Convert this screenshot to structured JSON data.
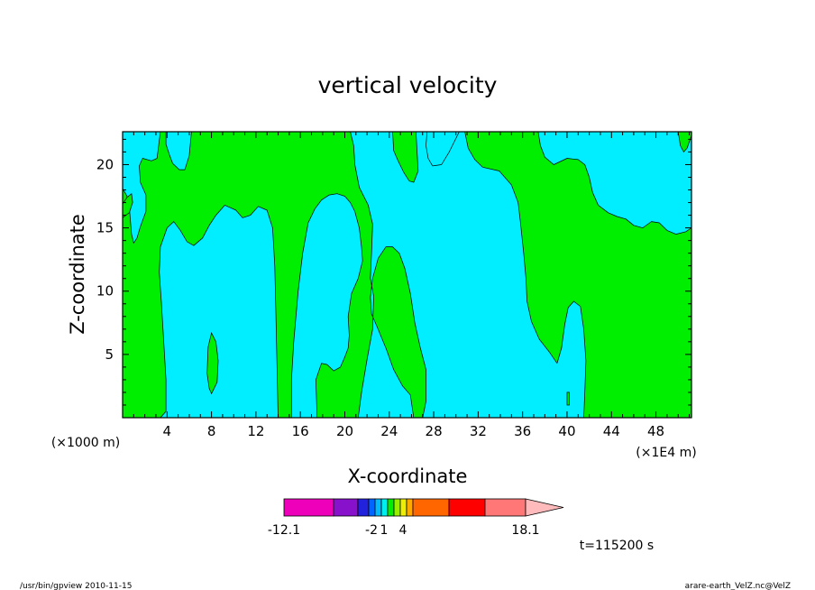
{
  "chart_data": {
    "type": "contour",
    "title": "vertical velocity",
    "xlabel": "X-coordinate",
    "ylabel": "Z-coordinate",
    "x_unit_left": "(×1000 m)",
    "x_unit_right": "(×1E4 m)",
    "x_ticks": [
      4,
      8,
      12,
      16,
      20,
      24,
      28,
      32,
      36,
      40,
      44,
      48
    ],
    "y_ticks": [
      5,
      10,
      15,
      20
    ],
    "xlim": [
      0,
      51.2
    ],
    "ylim": [
      0,
      22.6
    ],
    "fill_colors": {
      "negative": "#00eeff",
      "positive": "#00ee00"
    },
    "regions": [
      {
        "sign": "negative",
        "points": [
          [
            0,
            22.6
          ],
          [
            3.4,
            22.6
          ],
          [
            3.1,
            20.5
          ],
          [
            2.6,
            20.3
          ],
          [
            1.8,
            20.5
          ],
          [
            1.5,
            19.9
          ],
          [
            1.6,
            18.6
          ],
          [
            2.1,
            17.6
          ],
          [
            2.1,
            16.3
          ],
          [
            1.6,
            15.1
          ],
          [
            1.3,
            14.2
          ],
          [
            1.0,
            13.8
          ],
          [
            0.8,
            14.5
          ],
          [
            0.7,
            15.6
          ],
          [
            0.6,
            16.7
          ],
          [
            0.4,
            17.5
          ],
          [
            0.2,
            17.8
          ],
          [
            0,
            18.1
          ]
        ]
      },
      {
        "sign": "negative",
        "points": [
          [
            3.9,
            22.6
          ],
          [
            6.2,
            22.6
          ],
          [
            6.0,
            20.7
          ],
          [
            5.6,
            19.6
          ],
          [
            5.1,
            19.6
          ],
          [
            4.5,
            20.1
          ],
          [
            4.2,
            20.8
          ],
          [
            3.9,
            21.6
          ]
        ]
      },
      {
        "sign": "negative",
        "points": [
          [
            3.4,
            0
          ],
          [
            14.0,
            0
          ],
          [
            13.9,
            4.0
          ],
          [
            13.8,
            8.0
          ],
          [
            13.7,
            12.0
          ],
          [
            13.5,
            15.0
          ],
          [
            13.0,
            16.4
          ],
          [
            12.2,
            16.7
          ],
          [
            11.5,
            16.0
          ],
          [
            10.8,
            15.8
          ],
          [
            10.2,
            16.4
          ],
          [
            9.2,
            16.8
          ],
          [
            8.4,
            16.0
          ],
          [
            7.8,
            15.2
          ],
          [
            7.2,
            14.2
          ],
          [
            6.4,
            13.6
          ],
          [
            5.8,
            13.9
          ],
          [
            5.2,
            14.8
          ],
          [
            4.6,
            15.5
          ],
          [
            4.0,
            15.0
          ],
          [
            3.4,
            13.5
          ],
          [
            3.3,
            11.5
          ],
          [
            3.5,
            9.0
          ],
          [
            3.7,
            6.0
          ],
          [
            3.9,
            3.0
          ],
          [
            3.9,
            0.5
          ]
        ]
      },
      {
        "sign": "negative",
        "points": [
          [
            15.2,
            0
          ],
          [
            17.5,
            0
          ],
          [
            17.4,
            3.0
          ],
          [
            17.9,
            4.3
          ],
          [
            18.4,
            4.2
          ],
          [
            19.0,
            3.7
          ],
          [
            19.6,
            4.0
          ],
          [
            20.0,
            4.8
          ],
          [
            20.3,
            5.5
          ],
          [
            20.4,
            6.5
          ],
          [
            20.3,
            8.0
          ],
          [
            20.6,
            9.8
          ],
          [
            21.2,
            11.0
          ],
          [
            21.6,
            12.4
          ],
          [
            21.5,
            13.5
          ],
          [
            21.3,
            15.0
          ],
          [
            20.9,
            16.3
          ],
          [
            20.5,
            17.0
          ],
          [
            20.0,
            17.5
          ],
          [
            19.3,
            17.7
          ],
          [
            18.6,
            17.6
          ],
          [
            17.9,
            17.2
          ],
          [
            17.3,
            16.5
          ],
          [
            16.7,
            15.4
          ],
          [
            16.2,
            13.0
          ],
          [
            15.8,
            10.0
          ],
          [
            15.4,
            6.0
          ],
          [
            15.2,
            3.0
          ]
        ]
      },
      {
        "sign": "negative",
        "points": [
          [
            17.8,
            22.6
          ],
          [
            20.5,
            22.6
          ],
          [
            20.8,
            21.5
          ],
          [
            20.9,
            20.0
          ],
          [
            21.3,
            18.2
          ],
          [
            22.1,
            16.8
          ],
          [
            22.5,
            15.3
          ],
          [
            22.4,
            13.0
          ],
          [
            22.3,
            11.0
          ],
          [
            22.6,
            9.6
          ],
          [
            22.5,
            7.0
          ],
          [
            22.0,
            4.6
          ],
          [
            21.5,
            2.0
          ],
          [
            21.2,
            0
          ],
          [
            26.2,
            0
          ],
          [
            25.9,
            1.8
          ],
          [
            25.2,
            2.5
          ],
          [
            24.4,
            3.8
          ],
          [
            23.7,
            5.5
          ],
          [
            22.9,
            7.2
          ],
          [
            22.4,
            8.2
          ],
          [
            22.3,
            9.5
          ],
          [
            22.5,
            11.0
          ],
          [
            23.0,
            12.6
          ],
          [
            23.7,
            13.5
          ],
          [
            24.3,
            13.5
          ],
          [
            24.9,
            13.0
          ],
          [
            25.4,
            11.8
          ],
          [
            25.9,
            9.8
          ],
          [
            26.3,
            7.5
          ],
          [
            26.8,
            5.5
          ],
          [
            27.3,
            3.8
          ],
          [
            27.3,
            1.3
          ],
          [
            27.0,
            0
          ],
          [
            41.5,
            0
          ],
          [
            41.6,
            2.0
          ],
          [
            41.7,
            4.5
          ],
          [
            41.5,
            7.0
          ],
          [
            41.2,
            8.8
          ],
          [
            40.6,
            9.2
          ],
          [
            40.1,
            8.7
          ],
          [
            39.8,
            7.4
          ],
          [
            39.5,
            5.5
          ],
          [
            39.1,
            4.3
          ],
          [
            38.4,
            5.2
          ],
          [
            37.5,
            6.2
          ],
          [
            36.8,
            7.6
          ],
          [
            36.4,
            9.2
          ],
          [
            36.3,
            11.0
          ],
          [
            36.1,
            13.0
          ],
          [
            35.8,
            15.5
          ],
          [
            35.6,
            17.0
          ],
          [
            35.0,
            18.4
          ],
          [
            33.9,
            19.5
          ],
          [
            32.4,
            19.8
          ],
          [
            31.7,
            20.4
          ],
          [
            31.1,
            21.3
          ],
          [
            30.8,
            22.6
          ],
          [
            26.4,
            22.6
          ],
          [
            26.5,
            21.0
          ],
          [
            26.6,
            19.5
          ],
          [
            26.2,
            18.6
          ],
          [
            25.8,
            18.7
          ],
          [
            25.3,
            19.4
          ],
          [
            24.8,
            20.3
          ],
          [
            24.4,
            21.1
          ],
          [
            24.3,
            22.6
          ],
          [
            17.8,
            22.6
          ]
        ]
      },
      {
        "sign": "negative",
        "points": [
          [
            27.4,
            22.6
          ],
          [
            30.3,
            22.6
          ],
          [
            29.4,
            21.0
          ],
          [
            28.7,
            20.0
          ],
          [
            27.9,
            19.9
          ],
          [
            27.5,
            20.5
          ],
          [
            27.3,
            21.5
          ]
        ]
      },
      {
        "sign": "negative",
        "points": [
          [
            37.4,
            22.6
          ],
          [
            50.0,
            22.6
          ],
          [
            50.2,
            21.5
          ],
          [
            50.5,
            21.0
          ],
          [
            50.8,
            21.3
          ],
          [
            51.2,
            22.3
          ],
          [
            51.2,
            15.0
          ],
          [
            50.7,
            14.7
          ],
          [
            49.8,
            14.5
          ],
          [
            49.0,
            14.8
          ],
          [
            48.3,
            15.4
          ],
          [
            47.6,
            15.5
          ],
          [
            46.8,
            15.0
          ],
          [
            46.0,
            15.2
          ],
          [
            45.3,
            15.7
          ],
          [
            44.5,
            15.9
          ],
          [
            43.7,
            16.2
          ],
          [
            42.8,
            16.8
          ],
          [
            42.3,
            17.8
          ],
          [
            42.0,
            19.0
          ],
          [
            41.6,
            20.0
          ],
          [
            41.0,
            20.4
          ],
          [
            40.0,
            20.5
          ],
          [
            38.8,
            20.0
          ],
          [
            38.0,
            20.6
          ],
          [
            37.6,
            21.5
          ]
        ]
      }
    ],
    "islands": [
      {
        "sign": "positive",
        "points": [
          [
            8.0,
            1.9
          ],
          [
            8.5,
            2.8
          ],
          [
            8.6,
            4.5
          ],
          [
            8.4,
            6.0
          ],
          [
            8.0,
            6.7
          ],
          [
            7.7,
            5.6
          ],
          [
            7.6,
            3.5
          ],
          [
            7.8,
            2.3
          ]
        ]
      },
      {
        "sign": "positive",
        "points": [
          [
            0,
            15.8
          ],
          [
            0.6,
            16.2
          ],
          [
            0.9,
            17.0
          ],
          [
            0.8,
            17.7
          ],
          [
            0.4,
            17.4
          ],
          [
            0,
            16.9
          ]
        ]
      },
      {
        "sign": "positive",
        "points": [
          [
            40.0,
            1.0
          ],
          [
            40.2,
            1.0
          ],
          [
            40.2,
            2.0
          ],
          [
            40.0,
            2.0
          ]
        ]
      }
    ],
    "colorbar": {
      "colors": [
        "#ee00bb",
        "#8811cc",
        "#2222dd",
        "#0066ff",
        "#00bbff",
        "#00eeee",
        "#00ee00",
        "#99ee00",
        "#eeee00",
        "#ffaa00",
        "#ff6600",
        "#ff0000",
        "#ff7777",
        "#ffbbbb"
      ],
      "labels": [
        "-12.1",
        "-2",
        "1",
        "4",
        "18.1"
      ],
      "label_values": [
        -12.1,
        -2,
        1,
        4,
        18.1
      ]
    },
    "time_label": "t=115200 s"
  },
  "footer": {
    "left": "/usr/bin/gpview   2010-11-15",
    "right": "arare-earth_VelZ.nc@VelZ"
  }
}
